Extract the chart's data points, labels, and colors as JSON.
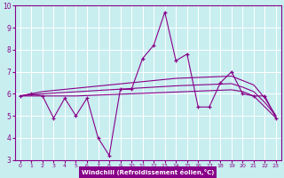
{
  "xlabel": "Windchill (Refroidissement éolien,°C)",
  "x_data": [
    0,
    1,
    2,
    3,
    4,
    5,
    6,
    7,
    8,
    9,
    10,
    11,
    12,
    13,
    14,
    15,
    16,
    17,
    18,
    19,
    20,
    21,
    22,
    23
  ],
  "y_main": [
    5.9,
    6.0,
    5.9,
    4.9,
    5.8,
    5.0,
    5.8,
    4.0,
    3.2,
    6.2,
    6.2,
    7.6,
    8.2,
    9.7,
    7.5,
    7.8,
    5.4,
    5.4,
    6.5,
    7.0,
    6.0,
    5.9,
    5.9,
    4.9
  ],
  "y_upper": [
    5.9,
    6.0,
    6.1,
    6.15,
    6.2,
    6.25,
    6.3,
    6.35,
    6.4,
    6.45,
    6.5,
    6.55,
    6.6,
    6.65,
    6.7,
    6.72,
    6.74,
    6.76,
    6.78,
    6.8,
    6.6,
    6.4,
    5.8,
    5.0
  ],
  "y_mid": [
    5.9,
    5.95,
    6.0,
    6.03,
    6.06,
    6.09,
    6.12,
    6.15,
    6.18,
    6.21,
    6.24,
    6.27,
    6.3,
    6.33,
    6.36,
    6.38,
    6.4,
    6.42,
    6.44,
    6.46,
    6.3,
    6.1,
    5.6,
    5.0
  ],
  "y_lower": [
    5.9,
    5.9,
    5.9,
    5.9,
    5.9,
    5.9,
    5.92,
    5.94,
    5.96,
    5.98,
    6.0,
    6.02,
    6.04,
    6.06,
    6.08,
    6.1,
    6.12,
    6.14,
    6.16,
    6.18,
    6.1,
    5.9,
    5.4,
    4.9
  ],
  "line_color": "#880088",
  "bg_color": "#c8eef0",
  "xlabel_bg": "#880088",
  "xlabel_fg": "#ffffff",
  "grid_color": "#ffffff",
  "ylim": [
    3,
    10
  ],
  "yticks": [
    3,
    4,
    5,
    6,
    7,
    8,
    9,
    10
  ],
  "xticks": [
    0,
    1,
    2,
    3,
    4,
    5,
    6,
    7,
    8,
    9,
    10,
    11,
    12,
    13,
    14,
    15,
    16,
    17,
    18,
    19,
    20,
    21,
    22,
    23
  ]
}
